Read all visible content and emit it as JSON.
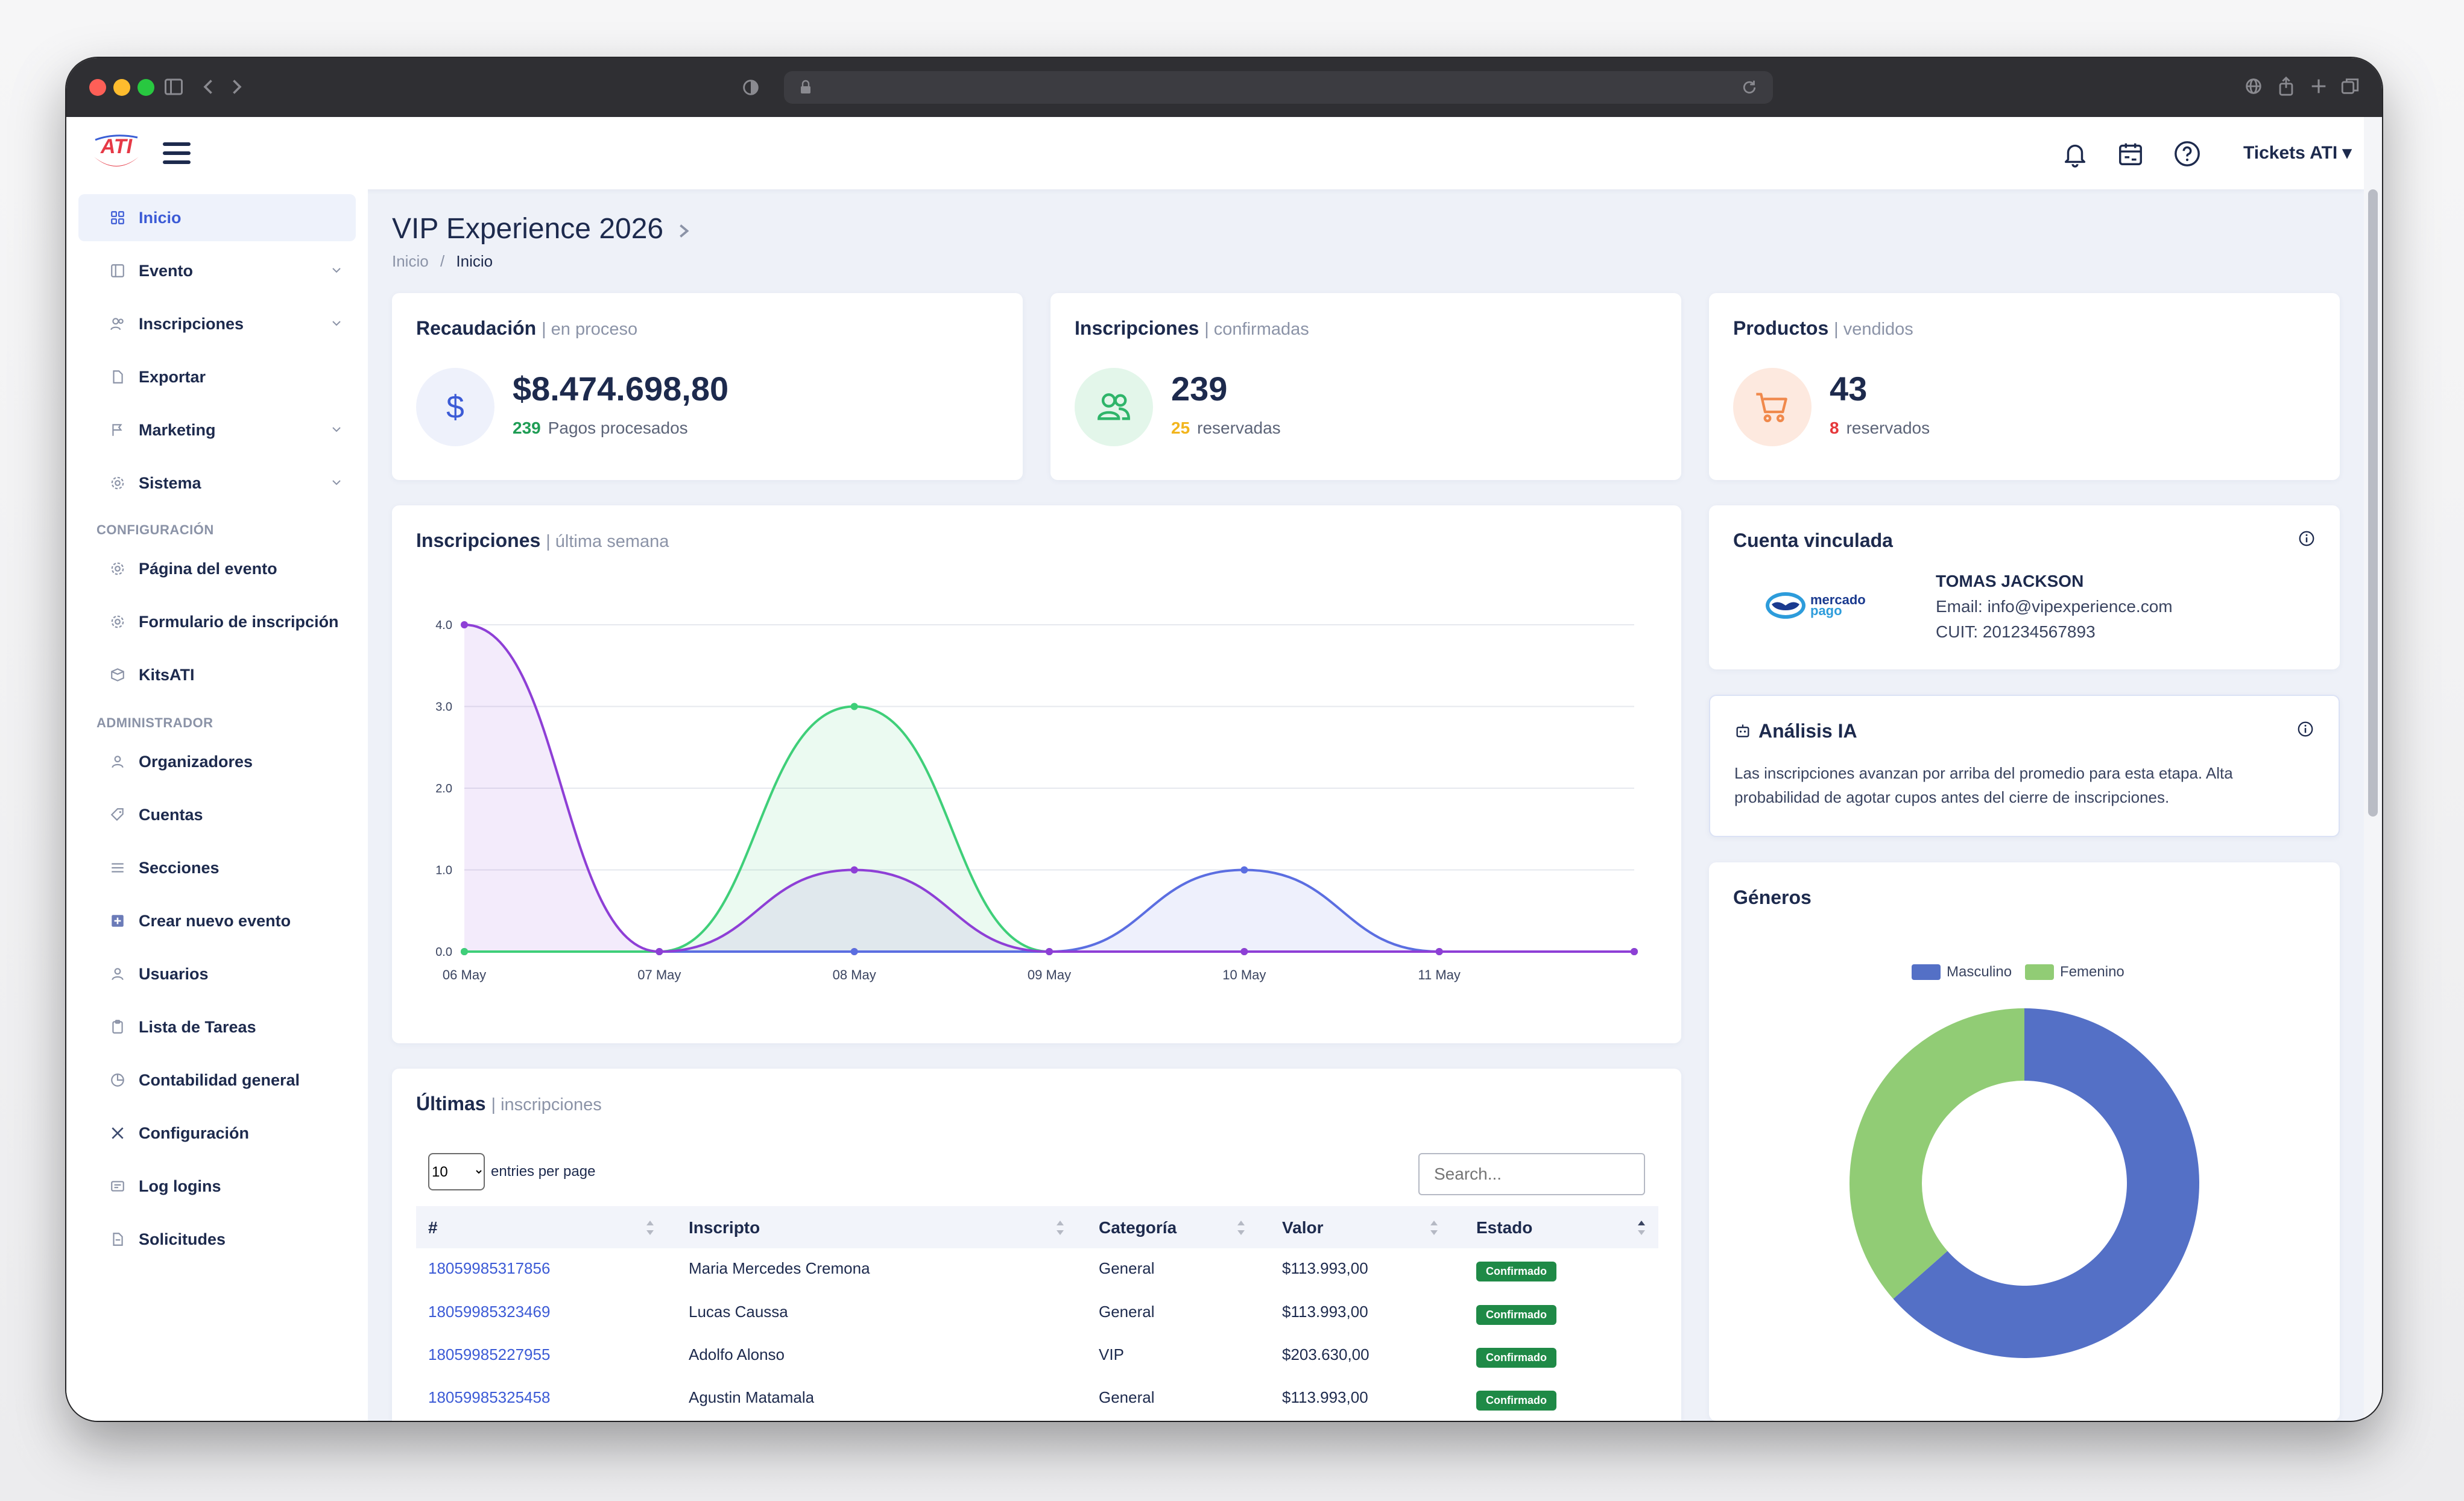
{
  "header": {
    "logo_text": "ATI",
    "user_menu": "Tickets ATI ▾"
  },
  "sidebar": {
    "items": [
      {
        "label": "Inicio"
      },
      {
        "label": "Evento"
      },
      {
        "label": "Inscripciones"
      },
      {
        "label": "Exportar"
      },
      {
        "label": "Marketing"
      },
      {
        "label": "Sistema"
      },
      {
        "label": "Página del evento"
      },
      {
        "label": "Formulario de inscripción"
      },
      {
        "label": "KitsATI"
      },
      {
        "label": "Organizadores"
      },
      {
        "label": "Cuentas"
      },
      {
        "label": "Secciones"
      },
      {
        "label": "Crear nuevo evento"
      },
      {
        "label": "Usuarios"
      },
      {
        "label": "Lista de Tareas"
      },
      {
        "label": "Contabilidad general"
      },
      {
        "label": "Configuración"
      },
      {
        "label": "Log logins"
      },
      {
        "label": "Solicitudes"
      }
    ],
    "section_config": "CONFIGURACIÓN",
    "section_admin": "ADMINISTRADOR"
  },
  "page": {
    "title": "VIP Experience 2026",
    "breadcrumb_home": "Inicio",
    "breadcrumb_sep": "/",
    "breadcrumb_current": "Inicio"
  },
  "stats": {
    "recaudacion": {
      "title": "Recaudación",
      "sub": "| en proceso",
      "value": "$8.474.698,80",
      "count": "239",
      "count_label": "Pagos procesados",
      "icon": "dollar-icon"
    },
    "inscripciones": {
      "title": "Inscripciones",
      "sub": "| confirmadas",
      "value": "239",
      "count": "25",
      "count_label": "reservadas",
      "icon": "users-icon"
    },
    "productos": {
      "title": "Productos",
      "sub": "| vendidos",
      "value": "43",
      "count": "8",
      "count_label": "reservados",
      "icon": "cart-icon"
    }
  },
  "colors": {
    "accent": "#3c5bd6",
    "green": "#1f9d55",
    "yellow": "#f2b51d",
    "red": "#e5383b",
    "orange": "#f0894c"
  },
  "chart_card": {
    "title": "Inscripciones",
    "sub": "| última semana"
  },
  "chart_data": {
    "type": "line",
    "x": [
      "06 May",
      "07 May",
      "08 May",
      "09 May",
      "10 May",
      "11 May",
      ""
    ],
    "yticks": [
      "4.0",
      "3.0",
      "2.0",
      "1.0",
      "0.0"
    ],
    "ylim": [
      0,
      4
    ],
    "grid": true,
    "series": [
      {
        "color": "#8e3fd6",
        "values": [
          4,
          0,
          1,
          0,
          0,
          0,
          0
        ]
      },
      {
        "color": "#3fcf79",
        "values": [
          0,
          0,
          3,
          0,
          0,
          0,
          0
        ]
      },
      {
        "color": "#5b6ee1",
        "values": [
          0,
          0,
          0,
          0,
          1,
          0,
          0
        ]
      },
      {
        "color": "#f0894c",
        "values": [
          0,
          0,
          0,
          0,
          0,
          0,
          0
        ]
      }
    ]
  },
  "cuenta": {
    "title": "Cuenta vinculada",
    "logo_line1": "mercado",
    "logo_line2": "pago",
    "name": "TOMAS JACKSON",
    "email": "Email: info@vipexperience.com",
    "cuit": "CUIT: 201234567893"
  },
  "analisis": {
    "title": "Análisis IA",
    "text": "Las inscripciones avanzan por arriba del promedio para esta etapa. Alta probabilidad de agotar cupos antes del cierre de inscripciones."
  },
  "generos": {
    "title": "Géneros",
    "legend": [
      {
        "label": "Masculino",
        "color": "#5470c6"
      },
      {
        "label": "Femenino",
        "color": "#91cc75"
      }
    ],
    "values": [
      0.635,
      0.365
    ]
  },
  "table": {
    "title": "Últimas",
    "sub": "| inscripciones",
    "page_size": "10",
    "entries_label": "entries per page",
    "search_placeholder": "Search...",
    "columns": [
      "#",
      "Inscripto",
      "Categoría",
      "Valor",
      "Estado"
    ],
    "rows": [
      {
        "id": "18059985317856",
        "name": "Maria Mercedes Cremona",
        "cat": "General",
        "valor": "$113.993,00",
        "estado": "Confirmado"
      },
      {
        "id": "18059985323469",
        "name": "Lucas Caussa",
        "cat": "General",
        "valor": "$113.993,00",
        "estado": "Confirmado"
      },
      {
        "id": "18059985227955",
        "name": "Adolfo Alonso",
        "cat": "VIP",
        "valor": "$203.630,00",
        "estado": "Confirmado"
      },
      {
        "id": "18059985325458",
        "name": "Agustin Matamala",
        "cat": "General",
        "valor": "$113.993,00",
        "estado": "Confirmado"
      }
    ]
  }
}
